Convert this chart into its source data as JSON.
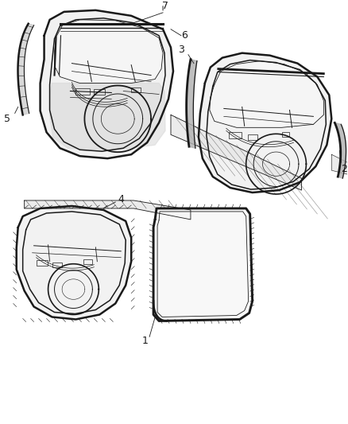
{
  "background_color": "#ffffff",
  "line_color": "#1a1a1a",
  "figsize": [
    4.38,
    5.33
  ],
  "dpi": 100,
  "gray_fill": "#e8e8e8",
  "light_fill": "#f5f5f5",
  "white_fill": "#ffffff"
}
